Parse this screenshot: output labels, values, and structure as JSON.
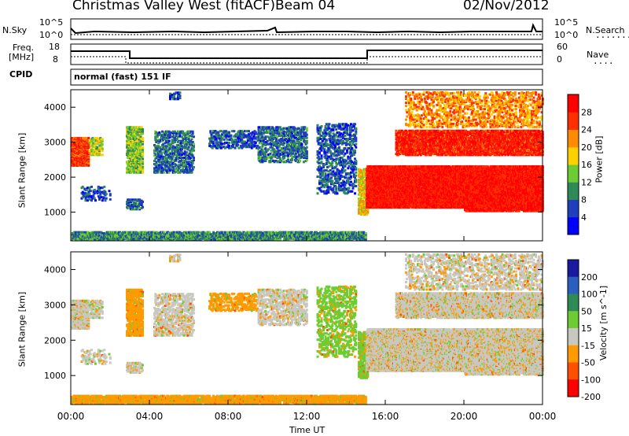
{
  "header": {
    "station": "Christmas Valley West (fitACF)",
    "beam": "Beam 04",
    "date": "02/Nov/2012"
  },
  "top_panel_labels": {
    "nsky": "N.Sky",
    "nsky_tick_hi": "10^5",
    "nsky_tick_lo": "10^0",
    "nsearch": "N.Search",
    "nsearch_tick_hi": "10^5",
    "nsearch_tick_lo": "10^0",
    "freq_line1": "Freq.",
    "freq_line2": "[MHz]",
    "freq_tick_hi": "18",
    "freq_tick_lo": "8",
    "nave": "Nave",
    "nave_tick_hi": "60",
    "nave_tick_lo": "0",
    "cpid": "CPID",
    "mode": "normal (fast) 151 IF"
  },
  "chart_data": [
    {
      "type": "heatmap",
      "panel": "power",
      "ylabel": "Slant Range [km]",
      "xlabel": "Time UT",
      "x_ticks": [
        "00:00",
        "04:00",
        "08:00",
        "12:00",
        "16:00",
        "20:00",
        "00:00"
      ],
      "x_range_hours": [
        0,
        24
      ],
      "y_range_km": [
        180,
        4500
      ],
      "y_ticks": [
        1000,
        2000,
        3000,
        4000
      ],
      "colorbar": {
        "label": "Power [dB]",
        "ticks": [
          "4",
          "8",
          "12",
          "16",
          "20",
          "24",
          "28"
        ],
        "range": [
          0,
          30
        ],
        "colors": [
          "#0000ff",
          "#1f3fbf",
          "#2e8b57",
          "#6dcc33",
          "#ffd000",
          "#ff8c00",
          "#ff3000",
          "#ff0000"
        ]
      }
    },
    {
      "type": "heatmap",
      "panel": "velocity",
      "ylabel": "Slant Range [km]",
      "xlabel": "Time UT",
      "x_ticks": [
        "00:00",
        "04:00",
        "08:00",
        "12:00",
        "16:00",
        "20:00",
        "00:00"
      ],
      "x_range_hours": [
        0,
        24
      ],
      "y_range_km": [
        180,
        4500
      ],
      "y_ticks": [
        1000,
        2000,
        3000,
        4000
      ],
      "colorbar": {
        "label": "Velocity [m s^-1]",
        "ticks": [
          "200",
          "100",
          "50",
          "15",
          "-15",
          "-50",
          "-100",
          "-200"
        ],
        "range": [
          -250,
          250
        ],
        "colors": [
          "#1a1aa0",
          "#2b5fbf",
          "#2e8b57",
          "#6dcc33",
          "#c8c8c0",
          "#ff9a00",
          "#ff5000",
          "#ff0000"
        ]
      }
    }
  ],
  "xlabel": "Time UT"
}
